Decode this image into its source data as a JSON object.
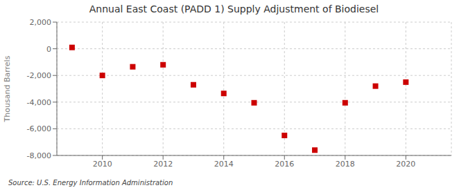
{
  "chart_data": {
    "type": "scatter",
    "title": "Annual East Coast (PADD 1) Supply Adjustment of Biodiesel",
    "ylabel": "Thousand Barrels",
    "annotations": [
      "Source: U.S. Energy Information Administration"
    ],
    "x": [
      2009,
      2010,
      2011,
      2012,
      2013,
      2014,
      2015,
      2016,
      2017,
      2018,
      2019,
      2020
    ],
    "values": [
      100,
      -2000,
      -1350,
      -1200,
      -2700,
      -3350,
      -4050,
      -6500,
      -7600,
      -4050,
      -2800,
      -2500
    ],
    "color": "#cc0000",
    "marker": "square",
    "xlim": [
      2008.5,
      2021.5
    ],
    "ylim": [
      -8000,
      2000
    ],
    "xticks": [
      2010,
      2012,
      2014,
      2016,
      2018,
      2020
    ],
    "yticks": [
      {
        "value": -8000,
        "label": "-8,000"
      },
      {
        "value": -6000,
        "label": "-6,000"
      },
      {
        "value": -4000,
        "label": "-4,000"
      },
      {
        "value": -2000,
        "label": "-2,000"
      },
      0,
      {
        "value": 2000,
        "label": "2,000"
      }
    ],
    "grid": true
  }
}
